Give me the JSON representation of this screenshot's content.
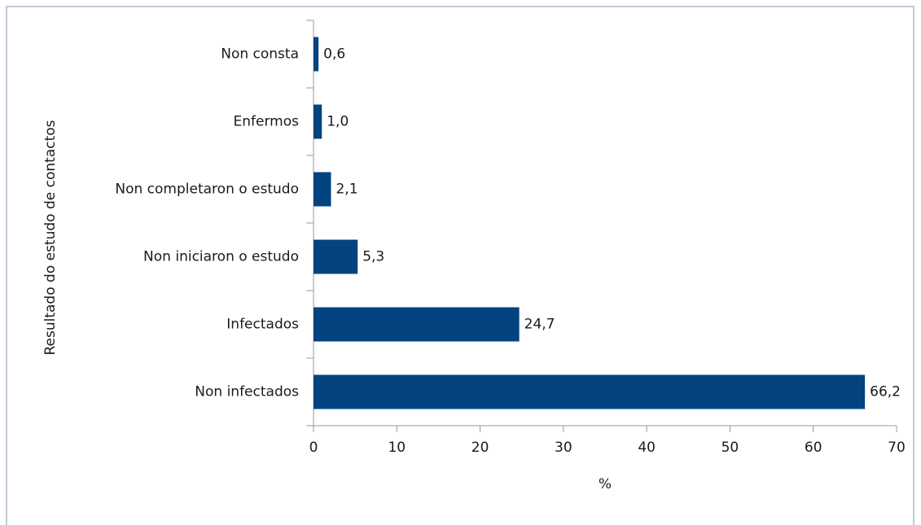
{
  "chart_data": {
    "type": "bar",
    "orientation": "horizontal",
    "x_label": "%",
    "y_label": "Resultado do estudo de contactos",
    "categories": [
      "Non consta",
      "Enfermos",
      "Non completaron o estudo",
      "Non iniciaron o estudo",
      "Infectados",
      "Non infectados"
    ],
    "values": [
      0.6,
      1.0,
      2.1,
      5.3,
      24.7,
      66.2
    ],
    "value_labels": [
      "0,6",
      "1,0",
      "2,1",
      "5,3",
      "24,7",
      "66,2"
    ],
    "color": "#03437f",
    "xlim": [
      0,
      70
    ],
    "xticks": [
      0,
      10,
      20,
      30,
      40,
      50,
      60,
      70
    ],
    "grid": false
  }
}
